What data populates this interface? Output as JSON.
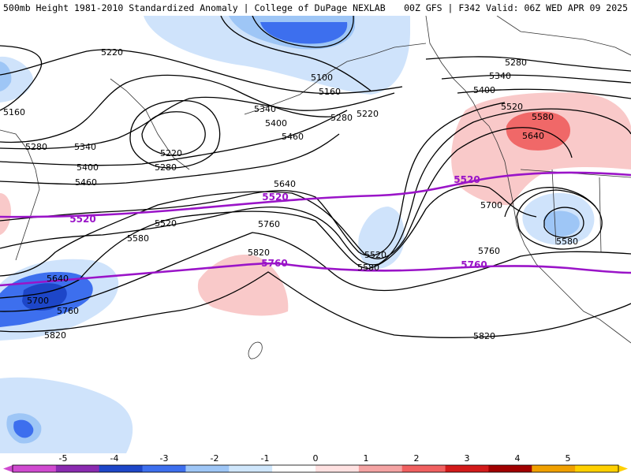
{
  "header": {
    "left": "500mb Height 1981-2010 Standardized Anomaly | College of DuPage NEXLAB",
    "right": "00Z GFS | F342 Valid: 06Z WED APR 09 2025"
  },
  "colorbar": {
    "ticks": [
      "-5",
      "-4",
      "-3",
      "-2",
      "-1",
      "0",
      "1",
      "2",
      "3",
      "4",
      "5"
    ],
    "colors": [
      "#d04ad0",
      "#8a2ab0",
      "#1d46c8",
      "#3d6fee",
      "#9ec6f6",
      "#cfe6fb",
      "#ffffff",
      "#ffe1e1",
      "#f4a3a3",
      "#f06060",
      "#d21a1a",
      "#a00000",
      "#f0a000",
      "#ffd000"
    ]
  },
  "anomaly_colors": {
    "light_blue": "#cfe3fb",
    "mid_blue": "#9ec6f6",
    "blue": "#3d6fee",
    "dark_blue": "#1d46c8",
    "light_red": "#f9c9c9",
    "red": "#f06868"
  },
  "contour_labels": [
    "5220",
    "5100",
    "5160",
    "5160",
    "5280",
    "5340",
    "5220",
    "5280",
    "5400",
    "5340",
    "5460",
    "5280",
    "5220",
    "5400",
    "5460",
    "5640",
    "5520",
    "5580",
    "5760",
    "5820",
    "5520",
    "5580",
    "5640",
    "5700",
    "5760",
    "5820",
    "5820",
    "5280",
    "5340",
    "5400",
    "5520",
    "5580",
    "5640",
    "5700",
    "5580",
    "5760"
  ],
  "highlight_labels": [
    "5520",
    "5520",
    "5520",
    "5760",
    "5760"
  ],
  "highlight_color": "#9a14c8"
}
